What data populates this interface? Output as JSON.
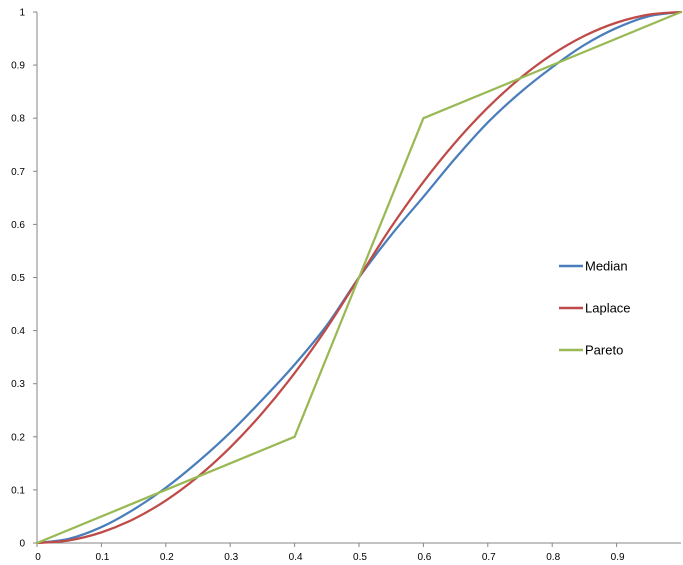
{
  "chart_data": {
    "type": "line",
    "title": "",
    "xlabel": "",
    "ylabel": "",
    "xlim": [
      0,
      1
    ],
    "ylim": [
      0,
      1
    ],
    "grid": false,
    "legend_position": "right",
    "x_ticks": [
      "0",
      "0.1",
      "0.2",
      "0.3",
      "0.4",
      "0.5",
      "0.6",
      "0.7",
      "0.8",
      "0.9"
    ],
    "y_ticks": [
      "0",
      "0.1",
      "0.2",
      "0.3",
      "0.4",
      "0.5",
      "0.6",
      "0.7",
      "0.8",
      "0.9",
      "1"
    ],
    "x": [
      0,
      0.05,
      0.1,
      0.15,
      0.2,
      0.25,
      0.3,
      0.35,
      0.4,
      0.45,
      0.5,
      0.55,
      0.6,
      0.65,
      0.7,
      0.75,
      0.8,
      0.85,
      0.9,
      0.95,
      1.0
    ],
    "series": [
      {
        "name": "Median",
        "color": "#4a7ebb",
        "values": [
          0,
          0.008,
          0.03,
          0.063,
          0.104,
          0.153,
          0.208,
          0.27,
          0.336,
          0.41,
          0.5,
          0.58,
          0.652,
          0.725,
          0.792,
          0.848,
          0.896,
          0.938,
          0.97,
          0.992,
          1.0
        ]
      },
      {
        "name": "Laplace",
        "color": "#be4b48",
        "values": [
          0,
          0.005,
          0.02,
          0.045,
          0.08,
          0.125,
          0.18,
          0.245,
          0.32,
          0.405,
          0.5,
          0.595,
          0.68,
          0.755,
          0.82,
          0.875,
          0.92,
          0.955,
          0.98,
          0.995,
          1.0
        ]
      },
      {
        "name": "Pareto",
        "color": "#98b954",
        "x": [
          0,
          0.39,
          0.4,
          0.5,
          0.6,
          0.61,
          1.0
        ],
        "values": [
          0,
          0.195,
          0.2,
          0.5,
          0.8,
          0.805,
          1.0
        ]
      }
    ]
  }
}
